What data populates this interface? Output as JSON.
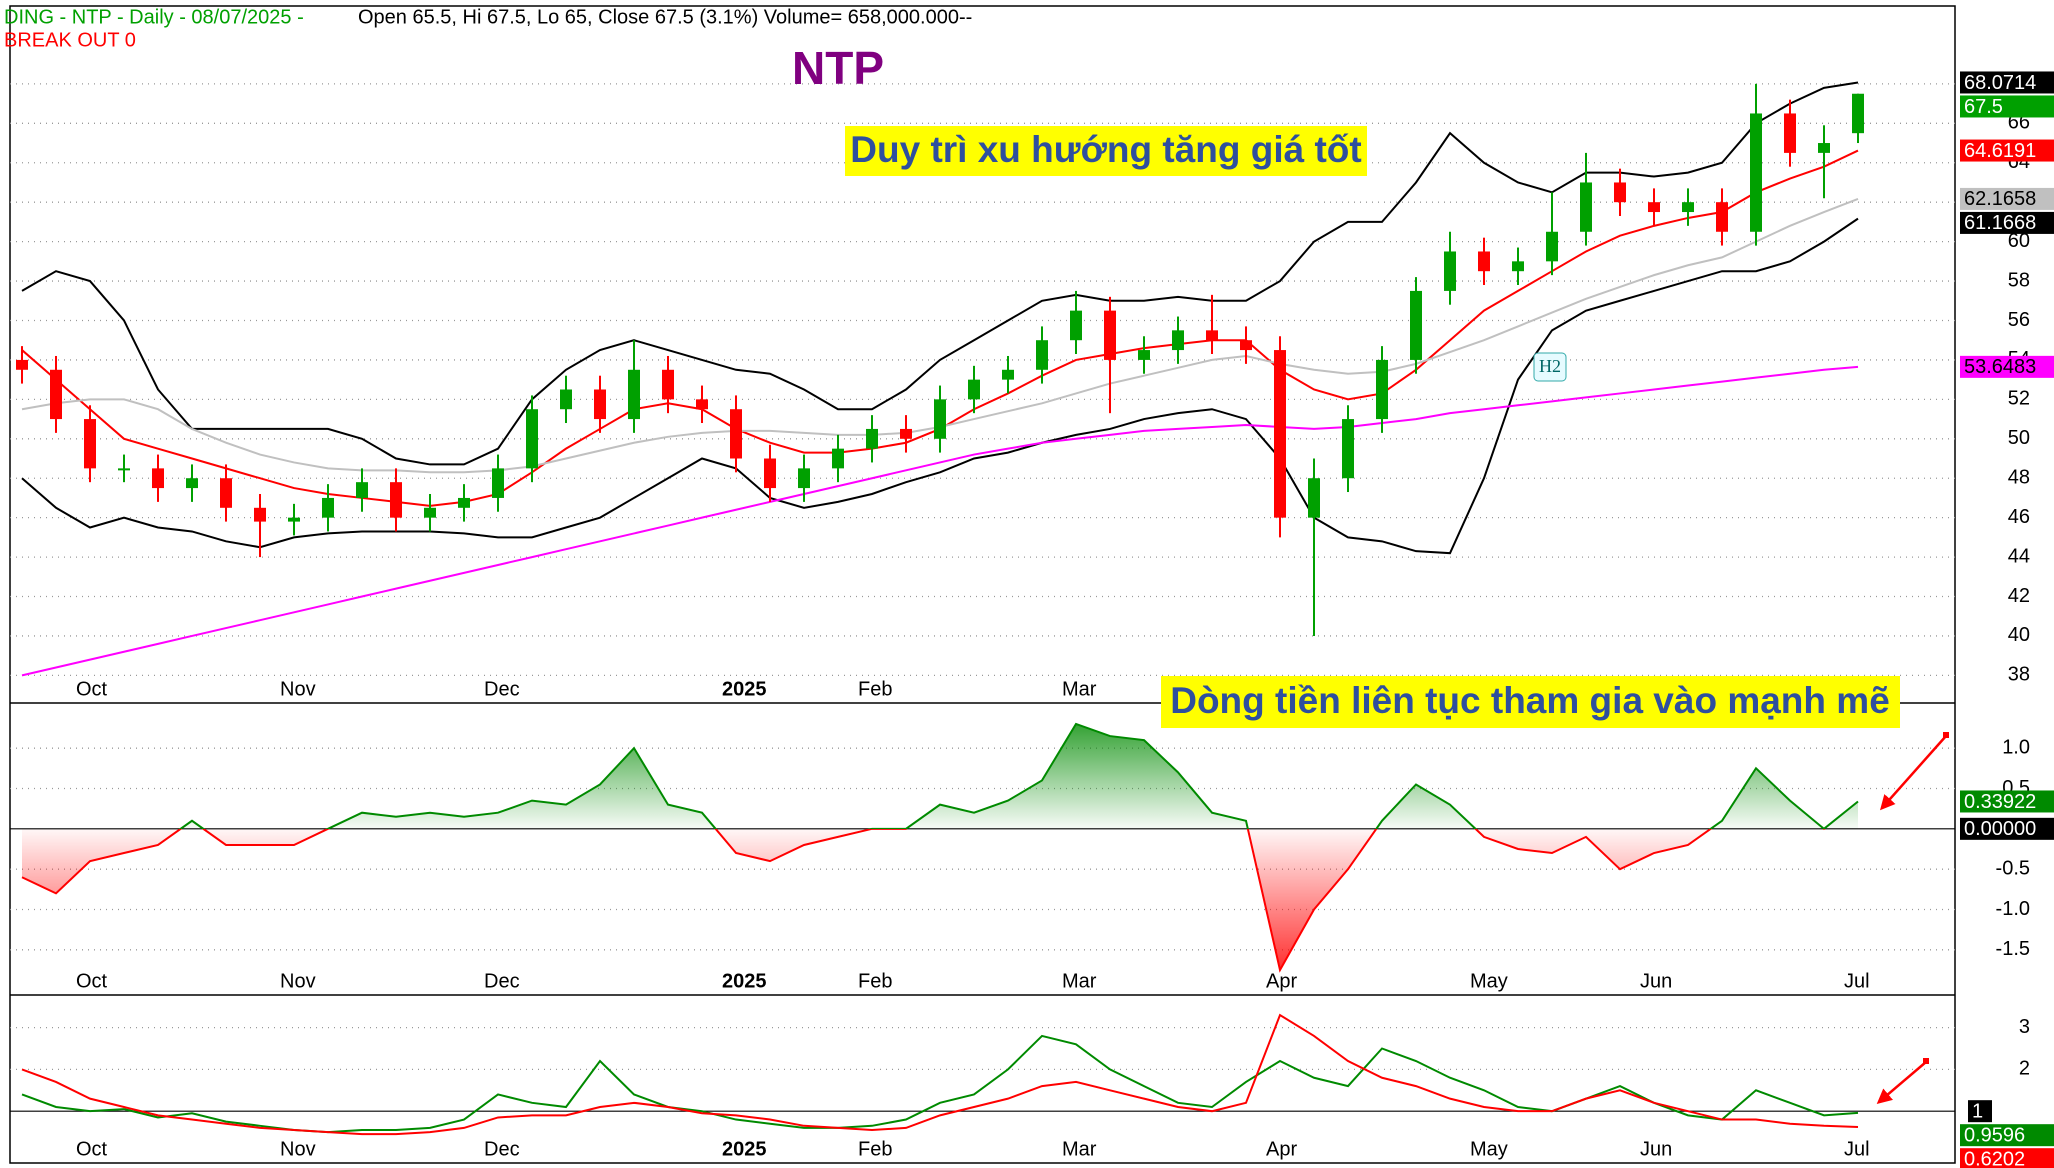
{
  "chart_data": [
    {
      "type": "candlestick",
      "title": "NTP",
      "header": {
        "source": "DING - NTP - Daily - 08/07/2025 -",
        "ohlc": "Open 65.5, Hi 67.5, Lo 65, Close 67.5 (3.1%) Volume= 658,000.000--",
        "signal": "BREAK OUT  0"
      },
      "annotations": [
        "Duy trì xu hướng tăng giá tốt",
        "H2"
      ],
      "categories": [
        null,
        null,
        "Oct",
        null,
        null,
        null,
        null,
        null,
        "Nov",
        null,
        null,
        null,
        null,
        null,
        "Dec",
        null,
        null,
        null,
        null,
        null,
        null,
        "2025",
        null,
        null,
        null,
        "Feb",
        null,
        null,
        null,
        null,
        null,
        "Mar",
        null,
        null,
        null,
        null,
        null,
        "Apr",
        null,
        null,
        null,
        null,
        null,
        "May",
        null,
        null,
        null,
        null,
        "Jun",
        null,
        null,
        null,
        null,
        null,
        "Jul"
      ],
      "open": [
        54,
        53.5,
        51,
        48.5,
        48.5,
        47.5,
        48,
        46.5,
        45.8,
        46,
        47,
        47.8,
        46,
        46.5,
        47,
        48.5,
        51.5,
        52.5,
        51,
        53.5,
        52,
        51.5,
        49,
        47.5,
        48.5,
        49.5,
        50.5,
        50,
        52,
        53,
        53.5,
        55,
        56.5,
        54,
        54.5,
        55.5,
        55,
        54.5,
        46,
        48,
        51,
        54,
        57.5,
        59.5,
        58.5,
        59,
        60.5,
        63,
        62,
        61.5,
        62,
        60.5,
        66.5,
        64.5,
        65.5
      ],
      "high": [
        54.7,
        54.2,
        51.7,
        49.2,
        49.2,
        48.7,
        48.7,
        47.2,
        46.7,
        47.7,
        48.5,
        48.5,
        47.2,
        47.7,
        49.2,
        52.2,
        53.2,
        53.2,
        55,
        54.2,
        52.7,
        52.2,
        49.7,
        49.2,
        50.2,
        51.2,
        51.2,
        52.7,
        53.7,
        54.2,
        55.7,
        57.5,
        57.2,
        55.2,
        56.2,
        57.3,
        55.7,
        55.2,
        49,
        51.7,
        54.7,
        58.2,
        60.5,
        60.2,
        59.7,
        62.5,
        64.5,
        63.7,
        62.7,
        62.7,
        62.7,
        68,
        67.2,
        65.9,
        67.5
      ],
      "low": [
        52.8,
        50.3,
        47.8,
        47.8,
        46.8,
        46.8,
        45.8,
        44,
        45.1,
        45.3,
        46.3,
        45.3,
        45.3,
        45.8,
        46.3,
        47.8,
        50.8,
        50.3,
        50.3,
        51.3,
        50.8,
        48.3,
        46.8,
        46.8,
        47.8,
        48.8,
        49.3,
        49.3,
        51.3,
        52.3,
        52.8,
        54.3,
        51.3,
        53.3,
        53.8,
        54.3,
        53.8,
        45,
        40,
        47.3,
        50.3,
        53.3,
        56.8,
        57.8,
        57.8,
        58.3,
        59.8,
        61.3,
        60.8,
        60.8,
        59.8,
        59.8,
        63.8,
        62.2,
        65
      ],
      "close": [
        53.5,
        51,
        48.5,
        48.5,
        47.5,
        48,
        46.5,
        45.8,
        46,
        47,
        47.8,
        46,
        46.5,
        47,
        48.5,
        51.5,
        52.5,
        51,
        53.5,
        52,
        51.5,
        49,
        47.5,
        48.5,
        49.5,
        50.5,
        50,
        52,
        53,
        53.5,
        55,
        56.5,
        54,
        54.5,
        55.5,
        55,
        54.5,
        46,
        48,
        51,
        54,
        57.5,
        59.5,
        58.5,
        59,
        60.5,
        63,
        62,
        61.5,
        62,
        60.5,
        66.5,
        64.5,
        65,
        67.5
      ],
      "up_color": "#00a000",
      "down_color": "#ff0000",
      "series": [
        {
          "color": "#000000",
          "values": [
            57.5,
            58.5,
            58,
            56,
            52.5,
            50.5,
            50.5,
            50.5,
            50.5,
            50.5,
            50,
            49,
            48.7,
            48.7,
            49.5,
            52,
            53.5,
            54.5,
            55,
            54.5,
            54,
            53.5,
            53.3,
            52.5,
            51.5,
            51.5,
            52.5,
            54,
            55,
            56,
            57,
            57.3,
            57,
            57,
            57.2,
            57,
            57,
            58,
            60,
            61,
            61,
            63,
            65.5,
            64,
            63,
            62.5,
            63.5,
            63.5,
            63.3,
            63.5,
            64,
            66,
            67,
            67.8,
            68.0714
          ]
        },
        {
          "color": "#000000",
          "values": [
            48,
            46.5,
            45.5,
            46,
            45.5,
            45.3,
            44.8,
            44.5,
            45,
            45.2,
            45.3,
            45.3,
            45.3,
            45.2,
            45,
            45,
            45.5,
            46,
            47,
            48,
            49,
            48.5,
            47,
            46.5,
            46.8,
            47.2,
            47.8,
            48.3,
            49,
            49.3,
            49.8,
            50.2,
            50.5,
            51,
            51.3,
            51.5,
            51,
            49,
            46,
            45,
            44.8,
            44.3,
            44.2,
            48,
            53,
            55.5,
            56.5,
            57,
            57.5,
            58,
            58.5,
            58.5,
            59,
            60,
            61.1668
          ]
        },
        {
          "color": "#ff0000",
          "values": [
            54.5,
            53,
            51.5,
            50,
            49.5,
            49,
            48.5,
            48,
            47.5,
            47.2,
            47,
            46.8,
            46.6,
            46.8,
            47.2,
            48.3,
            49.5,
            50.5,
            51.5,
            51.8,
            51.5,
            50.5,
            49.8,
            49.3,
            49.3,
            49.5,
            49.8,
            50.5,
            51.5,
            52.3,
            53.2,
            54,
            54.3,
            54.6,
            54.8,
            55,
            55,
            53.5,
            52.5,
            52,
            52.3,
            53.5,
            55,
            56.5,
            57.5,
            58.5,
            59.5,
            60.3,
            60.8,
            61.2,
            61.5,
            62.5,
            63.2,
            63.8,
            64.6191
          ]
        },
        {
          "color": "#c0c0c0",
          "values": [
            51.5,
            51.8,
            52,
            52,
            51.5,
            50.5,
            49.8,
            49.2,
            48.8,
            48.5,
            48.4,
            48.4,
            48.3,
            48.3,
            48.4,
            48.6,
            49,
            49.4,
            49.8,
            50.1,
            50.3,
            50.4,
            50.4,
            50.3,
            50.2,
            50.2,
            50.3,
            50.6,
            51,
            51.4,
            51.8,
            52.3,
            52.8,
            53.2,
            53.6,
            54,
            54.2,
            53.8,
            53.5,
            53.3,
            53.4,
            53.8,
            54.4,
            55,
            55.7,
            56.4,
            57.1,
            57.7,
            58.3,
            58.8,
            59.2,
            60,
            60.8,
            61.5,
            62.1658
          ]
        },
        {
          "color": "#ff00ff",
          "values": [
            38.0,
            38.4,
            38.8,
            39.2,
            39.6,
            40.0,
            40.4,
            40.8,
            41.2,
            41.6,
            42.0,
            42.4,
            42.8,
            43.2,
            43.6,
            44.0,
            44.4,
            44.8,
            45.2,
            45.6,
            46.0,
            46.4,
            46.8,
            47.2,
            47.6,
            48.0,
            48.4,
            48.8,
            49.2,
            49.5,
            49.8,
            50.0,
            50.2,
            50.4,
            50.5,
            50.6,
            50.7,
            50.6,
            50.5,
            50.6,
            50.8,
            51.0,
            51.3,
            51.5,
            51.7,
            51.9,
            52.1,
            52.3,
            52.5,
            52.7,
            52.9,
            53.1,
            53.3,
            53.5,
            53.6483
          ]
        }
      ],
      "ylim": [
        36.6,
        71.95
      ],
      "yticks": [
        38,
        40,
        42,
        44,
        46,
        48,
        50,
        52,
        54,
        56,
        58,
        60,
        62,
        64,
        66,
        68
      ],
      "grid": true
    },
    {
      "type": "area",
      "annotation": "Dòng tiền liên tục tham gia vào mạnh mẽ",
      "categories": [
        null,
        null,
        "Oct",
        null,
        null,
        null,
        null,
        null,
        "Nov",
        null,
        null,
        null,
        null,
        null,
        "Dec",
        null,
        null,
        null,
        null,
        null,
        null,
        "2025",
        null,
        null,
        null,
        "Feb",
        null,
        null,
        null,
        null,
        null,
        "Mar",
        null,
        null,
        null,
        null,
        null,
        "Apr",
        null,
        null,
        null,
        null,
        null,
        "May",
        null,
        null,
        null,
        null,
        "Jun",
        null,
        null,
        null,
        null,
        null,
        "Jul"
      ],
      "values": [
        -0.6,
        -0.8,
        -0.4,
        -0.3,
        -0.2,
        0.1,
        -0.2,
        -0.2,
        -0.2,
        0.0,
        0.2,
        0.15,
        0.2,
        0.15,
        0.2,
        0.35,
        0.3,
        0.55,
        1.0,
        0.3,
        0.2,
        -0.3,
        -0.4,
        -0.2,
        -0.1,
        0.0,
        0.0,
        0.3,
        0.2,
        0.35,
        0.6,
        1.3,
        1.15,
        1.1,
        0.7,
        0.2,
        0.1,
        -1.75,
        -1.0,
        -0.5,
        0.1,
        0.55,
        0.3,
        -0.1,
        -0.25,
        -0.3,
        -0.1,
        -0.5,
        -0.3,
        -0.2,
        0.1,
        0.75,
        0.35,
        0.0,
        0.33922
      ],
      "colors": {
        "positive": "#008a00",
        "negative": "#ff0000"
      },
      "baseline": {
        "value": 0,
        "label": "0.00000"
      },
      "ylim": [
        -2.06,
        1.56
      ],
      "yticks": [
        -1.5,
        {
          "value": -1.0,
          "label": "-1.0"
        },
        -0.5,
        0.5,
        {
          "value": 1.0,
          "label": "1.0"
        }
      ],
      "grid": true
    },
    {
      "type": "line",
      "categories": [
        null,
        null,
        "Oct",
        null,
        null,
        null,
        null,
        null,
        "Nov",
        null,
        null,
        null,
        null,
        null,
        "Dec",
        null,
        null,
        null,
        null,
        null,
        null,
        "2025",
        null,
        null,
        null,
        "Feb",
        null,
        null,
        null,
        null,
        null,
        "Mar",
        null,
        null,
        null,
        null,
        null,
        "Apr",
        null,
        null,
        null,
        null,
        null,
        "May",
        null,
        null,
        null,
        null,
        "Jun",
        null,
        null,
        null,
        null,
        null,
        "Jul"
      ],
      "series": [
        {
          "color": "#008a00",
          "values": [
            1.4,
            1.1,
            1.0,
            1.05,
            0.85,
            0.95,
            0.75,
            0.65,
            0.55,
            0.5,
            0.55,
            0.55,
            0.6,
            0.8,
            1.4,
            1.2,
            1.1,
            2.2,
            1.4,
            1.1,
            1.0,
            0.8,
            0.7,
            0.6,
            0.6,
            0.65,
            0.8,
            1.2,
            1.4,
            2.0,
            2.8,
            2.6,
            2.0,
            1.6,
            1.2,
            1.1,
            1.7,
            2.2,
            1.8,
            1.6,
            2.5,
            2.2,
            1.8,
            1.5,
            1.1,
            1.0,
            1.3,
            1.6,
            1.2,
            0.9,
            0.8,
            1.5,
            1.2,
            0.9,
            0.9596
          ]
        },
        {
          "color": "#ff0000",
          "values": [
            2.0,
            1.7,
            1.3,
            1.1,
            0.9,
            0.8,
            0.7,
            0.6,
            0.55,
            0.5,
            0.45,
            0.45,
            0.5,
            0.6,
            0.85,
            0.9,
            0.9,
            1.1,
            1.2,
            1.1,
            0.95,
            0.9,
            0.8,
            0.65,
            0.6,
            0.55,
            0.6,
            0.9,
            1.1,
            1.3,
            1.6,
            1.7,
            1.5,
            1.3,
            1.1,
            1.0,
            1.2,
            3.3,
            2.8,
            2.2,
            1.8,
            1.6,
            1.3,
            1.1,
            1.0,
            1.0,
            1.3,
            1.5,
            1.2,
            1.0,
            0.8,
            0.8,
            0.7,
            0.65,
            0.6202
          ]
        }
      ],
      "ref_line": 1,
      "ylim": [
        -0.24,
        3.78
      ],
      "yticks": [
        2,
        3
      ],
      "grid": true
    }
  ]
}
